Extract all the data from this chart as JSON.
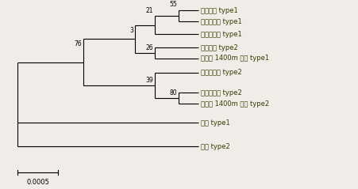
{
  "scale_bar_label": "0.0005",
  "taxa": [
    "한택곰취 type1",
    "한다리곰취 type1",
    "다도해곰취 type1",
    "한택곰취 type2",
    "한라산 1400m 곰취 type1",
    "한다리곰취 type2",
    "다도해곰취 type2",
    "한라산 1400m 곰취 type2",
    "곰취 type1",
    "곰취 type2"
  ],
  "line_color": "#000000",
  "text_color": "#3a3a00",
  "font_size": 6.0,
  "bootstrap_font_size": 5.5,
  "scale_font_size": 6.0,
  "lw": 0.8,
  "bg_color": "#f0ede8"
}
